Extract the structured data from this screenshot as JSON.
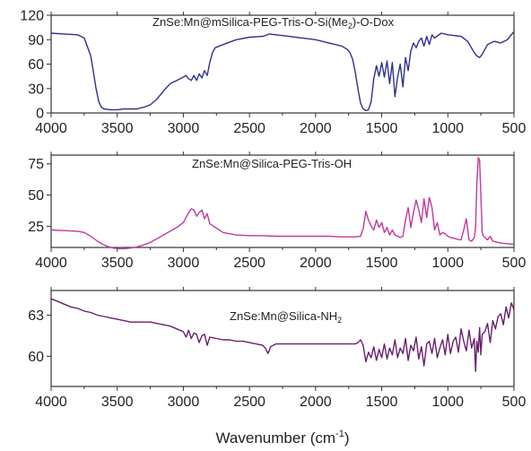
{
  "chart_data": [
    {
      "type": "line",
      "title": "ZnSe:Mn@mSilica-PEG-Tris-O-Si(Me",
      "title_sub": "2",
      "title_tail": ")-O-Dox",
      "xlim": [
        4000,
        500
      ],
      "ylim": [
        0,
        120
      ],
      "x_ticks": [
        "4000",
        "3500",
        "3000",
        "2500",
        "2000",
        "1500",
        "1000",
        "500"
      ],
      "y_ticks": [
        "120",
        "90",
        "60",
        "30",
        "0"
      ],
      "series": [
        {
          "color": "#2e3192",
          "x": [
            4000,
            3900,
            3800,
            3750,
            3700,
            3680,
            3660,
            3640,
            3620,
            3600,
            3550,
            3500,
            3450,
            3400,
            3350,
            3300,
            3250,
            3200,
            3150,
            3100,
            3050,
            3000,
            2980,
            2960,
            2940,
            2920,
            2900,
            2880,
            2860,
            2840,
            2820,
            2800,
            2780,
            2760,
            2700,
            2600,
            2500,
            2400,
            2350,
            2300,
            2250,
            2200,
            2150,
            2100,
            2050,
            2000,
            1950,
            1900,
            1850,
            1800,
            1780,
            1760,
            1740,
            1720,
            1700,
            1680,
            1660,
            1640,
            1620,
            1600,
            1580,
            1560,
            1540,
            1520,
            1500,
            1480,
            1460,
            1440,
            1420,
            1400,
            1380,
            1360,
            1340,
            1320,
            1300,
            1280,
            1260,
            1240,
            1220,
            1200,
            1180,
            1160,
            1140,
            1120,
            1100,
            1050,
            1000,
            950,
            900,
            850,
            800,
            780,
            760,
            740,
            720,
            700,
            650,
            600,
            550,
            500
          ],
          "y": [
            98,
            97,
            96,
            92,
            70,
            50,
            30,
            14,
            7,
            5,
            4,
            4,
            5,
            5,
            5,
            7,
            10,
            17,
            27,
            36,
            40,
            44,
            46,
            42,
            40,
            46,
            40,
            48,
            43,
            52,
            46,
            62,
            74,
            80,
            84,
            90,
            93,
            94,
            97,
            96,
            95,
            94,
            93,
            92,
            91,
            90,
            88,
            86,
            84,
            82,
            80,
            78,
            74,
            66,
            50,
            30,
            12,
            5,
            3,
            4,
            14,
            42,
            58,
            45,
            62,
            44,
            64,
            36,
            62,
            20,
            44,
            60,
            32,
            68,
            52,
            76,
            86,
            80,
            88,
            92,
            82,
            94,
            84,
            96,
            92,
            98,
            96,
            95,
            94,
            88,
            74,
            70,
            68,
            72,
            78,
            84,
            88,
            86,
            90,
            100
          ]
        }
      ]
    },
    {
      "type": "line",
      "title": "ZnSe:Mn@Silica-PEG-Tris-OH",
      "xlim": [
        4000,
        500
      ],
      "ylim": [
        8,
        82
      ],
      "x_ticks": [
        "4000",
        "3500",
        "3000",
        "2500",
        "2000",
        "1500",
        "1000",
        "500"
      ],
      "y_ticks": [
        "75",
        "50",
        "25"
      ],
      "series": [
        {
          "color": "#bf3a9c",
          "x": [
            4000,
            3900,
            3800,
            3750,
            3700,
            3650,
            3600,
            3550,
            3500,
            3450,
            3400,
            3350,
            3300,
            3250,
            3200,
            3150,
            3100,
            3050,
            3000,
            2980,
            2960,
            2940,
            2920,
            2900,
            2880,
            2860,
            2840,
            2820,
            2800,
            2700,
            2600,
            2500,
            2400,
            2300,
            2200,
            2100,
            2000,
            1900,
            1800,
            1700,
            1660,
            1640,
            1620,
            1600,
            1580,
            1560,
            1540,
            1520,
            1500,
            1480,
            1460,
            1440,
            1420,
            1400,
            1380,
            1360,
            1340,
            1320,
            1300,
            1280,
            1260,
            1240,
            1220,
            1200,
            1180,
            1160,
            1140,
            1120,
            1100,
            1080,
            1060,
            1040,
            1020,
            1000,
            980,
            960,
            940,
            920,
            900,
            880,
            860,
            840,
            820,
            800,
            790,
            780,
            770,
            760,
            750,
            740,
            730,
            720,
            700,
            680,
            660,
            640,
            620,
            600,
            550,
            500
          ],
          "y": [
            22,
            21.5,
            21,
            20,
            17,
            13,
            10,
            8,
            7,
            7,
            7.5,
            8.5,
            10,
            12,
            15,
            18,
            21,
            24,
            28,
            32,
            36,
            39,
            38,
            33,
            36,
            38,
            31,
            35,
            27,
            20,
            18,
            17.5,
            17.5,
            17,
            17,
            17,
            17,
            17,
            16.5,
            16.5,
            17,
            23,
            37,
            30,
            25,
            22,
            30,
            24,
            28,
            20,
            24,
            18,
            22,
            18,
            17,
            16,
            17,
            30,
            40,
            24,
            36,
            46,
            38,
            28,
            47,
            32,
            48,
            40,
            22,
            28,
            18,
            20,
            19,
            17,
            16,
            15.5,
            15,
            14.5,
            14,
            22,
            31,
            14,
            13,
            16,
            24,
            60,
            80,
            78,
            50,
            20,
            17,
            16,
            14,
            17,
            13,
            12.5,
            12,
            11.5,
            11,
            10.5
          ]
        }
      ]
    },
    {
      "type": "line",
      "title": "ZnSe:Mn@Silica-NH",
      "title_sub": "2",
      "title_tail": "",
      "xlim": [
        4000,
        500
      ],
      "ylim": [
        57.8,
        64.8
      ],
      "x_ticks": [
        "4000",
        "3500",
        "3000",
        "2500",
        "2000",
        "1500",
        "1000",
        "500"
      ],
      "y_ticks": [
        "63",
        "60"
      ],
      "xlabel": "Wavenumber (cm",
      "xlabel_sup": "-1",
      "xlabel_tail": ")",
      "series": [
        {
          "color": "#6b1e6e",
          "x": [
            4000,
            3950,
            3900,
            3850,
            3800,
            3750,
            3700,
            3650,
            3600,
            3550,
            3500,
            3450,
            3400,
            3350,
            3300,
            3250,
            3200,
            3150,
            3100,
            3050,
            3000,
            2980,
            2960,
            2940,
            2920,
            2900,
            2880,
            2860,
            2840,
            2820,
            2800,
            2750,
            2700,
            2650,
            2600,
            2550,
            2500,
            2450,
            2400,
            2380,
            2360,
            2340,
            2320,
            2300,
            2250,
            2200,
            2150,
            2100,
            2050,
            2000,
            1950,
            1900,
            1850,
            1800,
            1750,
            1700,
            1680,
            1660,
            1640,
            1620,
            1600,
            1580,
            1560,
            1540,
            1520,
            1500,
            1480,
            1460,
            1440,
            1420,
            1400,
            1380,
            1360,
            1340,
            1320,
            1300,
            1280,
            1260,
            1240,
            1220,
            1200,
            1180,
            1160,
            1140,
            1120,
            1100,
            1080,
            1060,
            1040,
            1020,
            1000,
            980,
            960,
            940,
            920,
            900,
            880,
            860,
            840,
            820,
            800,
            790,
            780,
            770,
            760,
            750,
            740,
            720,
            700,
            680,
            660,
            640,
            620,
            600,
            580,
            560,
            540,
            520,
            500
          ],
          "y": [
            64.2,
            64.0,
            63.8,
            63.6,
            63.5,
            63.3,
            63.2,
            63.0,
            62.9,
            62.8,
            62.7,
            62.6,
            62.5,
            62.5,
            62.5,
            62.5,
            62.4,
            62.3,
            62.2,
            62.0,
            61.8,
            61.4,
            61.9,
            61.3,
            61.7,
            61.6,
            61.0,
            61.5,
            61.6,
            60.8,
            61.4,
            61.3,
            61.2,
            61.2,
            61.1,
            61.1,
            61.0,
            60.9,
            60.8,
            60.6,
            60.2,
            60.7,
            60.8,
            60.9,
            60.9,
            60.9,
            60.9,
            60.9,
            60.9,
            60.9,
            60.9,
            60.9,
            60.9,
            60.9,
            60.9,
            60.9,
            61.0,
            61.2,
            60.8,
            59.6,
            60.3,
            59.9,
            60.7,
            59.7,
            60.5,
            59.9,
            60.9,
            59.8,
            60.6,
            60.1,
            61.2,
            59.9,
            60.6,
            60.2,
            61.3,
            59.7,
            60.8,
            60.4,
            61.4,
            59.8,
            60.7,
            59.3,
            60.9,
            61.1,
            60.2,
            61.3,
            59.9,
            60.6,
            61.2,
            60.1,
            61.6,
            60.2,
            61.1,
            61.4,
            60.3,
            62.0,
            61.1,
            60.4,
            61.9,
            60.6,
            61.3,
            58.9,
            61.1,
            60.3,
            62.1,
            60.1,
            61.6,
            61.8,
            62.4,
            61.0,
            62.6,
            62.0,
            62.9,
            63.1,
            62.3,
            63.6,
            62.8,
            63.9,
            63.4
          ]
        }
      ]
    }
  ]
}
